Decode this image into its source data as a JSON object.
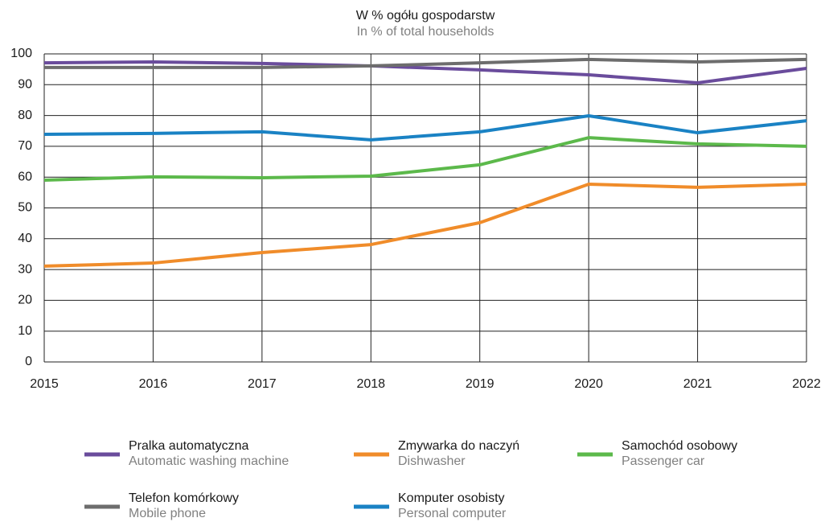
{
  "chart_data": {
    "type": "line",
    "title": "W % ogółu gospodarstw",
    "subtitle": "In % of total households",
    "x": [
      2015,
      2016,
      2017,
      2018,
      2019,
      2020,
      2021,
      2022
    ],
    "xlim": [
      2015,
      2022
    ],
    "xticks": [
      2015,
      2016,
      2017,
      2018,
      2019,
      2020,
      2021,
      2022
    ],
    "ylim": [
      0,
      100
    ],
    "yticks": [
      0,
      10,
      20,
      30,
      40,
      50,
      60,
      70,
      80,
      90,
      100
    ],
    "grid": true,
    "series": [
      {
        "name": "Pralka automatyczna",
        "name_en": "Automatic washing machine",
        "color": "#6a4c9c",
        "values": [
          97.1,
          97.4,
          96.9,
          96.1,
          94.8,
          93.2,
          90.6,
          95.3
        ]
      },
      {
        "name": "Zmywarka do naczyń",
        "name_en": "Dishwasher",
        "color": "#f08c2a",
        "values": [
          31.1,
          32.1,
          35.5,
          38.1,
          45.2,
          57.7,
          56.7,
          57.7
        ]
      },
      {
        "name": "Samochód osobowy",
        "name_en": "Passenger car",
        "color": "#5cb94b",
        "values": [
          59.0,
          60.1,
          59.8,
          60.3,
          64.0,
          72.8,
          70.8,
          70.0
        ]
      },
      {
        "name": "Telefon komórkowy",
        "name_en": "Mobile phone",
        "color": "#6d6d6d",
        "values": [
          95.6,
          95.6,
          95.6,
          96.1,
          97.1,
          98.2,
          97.4,
          98.2
        ]
      },
      {
        "name": "Komputer osobisty",
        "name_en": "Personal computer",
        "color": "#1a82c4",
        "values": [
          73.9,
          74.2,
          74.7,
          72.1,
          74.7,
          79.9,
          74.4,
          78.3
        ]
      }
    ]
  }
}
